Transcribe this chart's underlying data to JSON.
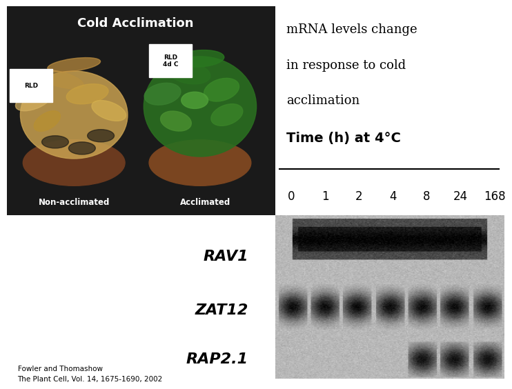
{
  "background_color": "#ffffff",
  "title_text": "m.RNA levels change in response to cold acclimation\nFowler and Thomashow\nThe Plant Cell",
  "top_left_label": "Cold Acclimation",
  "bottom_left_label1": "Non-acclimated",
  "bottom_left_label2": "Acclimated",
  "rld_label1": "RLD",
  "rld_label2": "RLD\n4d C",
  "mrna_text_line1": "mRNA levels change",
  "mrna_text_line2": "in response to cold",
  "mrna_text_line3": "acclimation",
  "time_label": "Time (h) at 4°C",
  "time_points": [
    "0",
    "1",
    "2",
    "4",
    "8",
    "24",
    "168"
  ],
  "gene_labels": [
    "RAV1",
    "ZAT12",
    "RAP2.1"
  ],
  "citation_line1": "Fowler and Thomashow",
  "citation_line2": "The Plant Cell, Vol. 14, 1675-1690, 2002",
  "photo_bg": "#1a1a1a",
  "gel_bg": "#b8b8b8",
  "gel_band_dark": "#111111",
  "gel_band_mid": "#333333"
}
